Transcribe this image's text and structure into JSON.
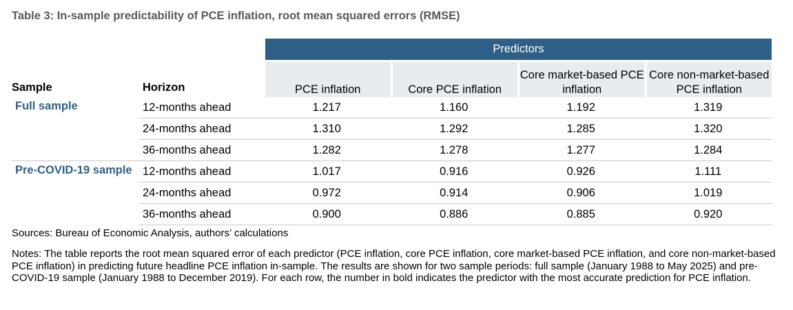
{
  "title": "Table 3: In-sample predictability of PCE inflation, root mean squared errors (RMSE)",
  "table": {
    "group_header": "Predictors",
    "col_sample": "Sample",
    "col_horizon": "Horizon",
    "predictors": [
      "PCE inflation",
      "Core PCE inflation",
      "Core market-based PCE inflation",
      "Core non-market-based PCE inflation"
    ],
    "groups": [
      {
        "sample": "Full sample",
        "rows": [
          {
            "horizon": "12-months ahead",
            "values": [
              "1.217",
              "1.160",
              "1.192",
              "1.319"
            ],
            "best_index": 1
          },
          {
            "horizon": "24-months ahead",
            "values": [
              "1.310",
              "1.292",
              "1.285",
              "1.320"
            ],
            "best_index": 2
          },
          {
            "horizon": "36-months ahead",
            "values": [
              "1.282",
              "1.278",
              "1.277",
              "1.284"
            ],
            "best_index": 2
          }
        ]
      },
      {
        "sample": "Pre-COVID-19 sample",
        "rows": [
          {
            "horizon": "12-months ahead",
            "values": [
              "1.017",
              "0.916",
              "0.926",
              "1.111"
            ],
            "best_index": 1
          },
          {
            "horizon": "24-months ahead",
            "values": [
              "0.972",
              "0.914",
              "0.906",
              "1.019"
            ],
            "best_index": 2
          },
          {
            "horizon": "36-months ahead",
            "values": [
              "0.900",
              "0.886",
              "0.885",
              "0.920"
            ],
            "best_index": 2
          }
        ]
      }
    ]
  },
  "sources": "Sources: Bureau of Economic Analysis, authors’ calculations",
  "notes": "Notes: The table reports the root mean squared error of each predictor (PCE inflation, core PCE inflation, core market-based PCE inflation, and core non-market-based PCE inflation) in predicting future headline PCE inflation in-sample. The results are shown for two sample periods: full sample (January 1988 to May 2025) and pre-COVID-19 sample (January 1988 to December 2019). For each row, the number in bold indicates the predictor with the most accurate prediction for PCE inflation.",
  "colors": {
    "header_fill": "#2e6087",
    "subheader_fill": "#e9ecef",
    "sample_text": "#2e6087",
    "title_text": "#595959"
  }
}
